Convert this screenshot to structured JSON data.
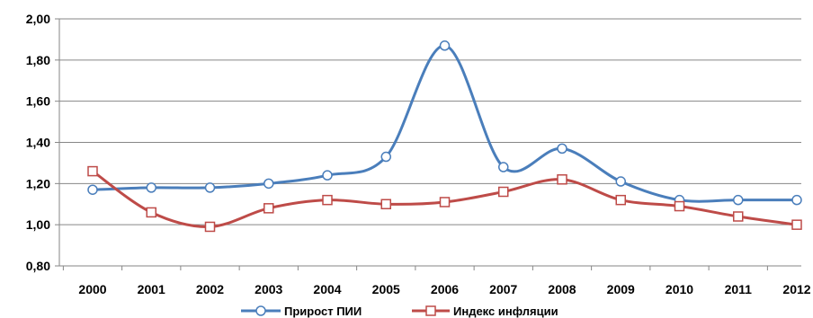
{
  "chart_data": {
    "type": "line",
    "title": "",
    "xlabel": "",
    "ylabel": "",
    "categories": [
      "2000",
      "2001",
      "2002",
      "2003",
      "2004",
      "2005",
      "2006",
      "2007",
      "2008",
      "2009",
      "2010",
      "2011",
      "2012"
    ],
    "ylim": [
      0.8,
      2.0
    ],
    "yticks": [
      "0,80",
      "1,00",
      "1,20",
      "1,40",
      "1,60",
      "1,80",
      "2,00"
    ],
    "ytick_values": [
      0.8,
      1.0,
      1.2,
      1.4,
      1.6,
      1.8,
      2.0
    ],
    "grid": "horizontal",
    "smooth": true,
    "legend_position": "bottom",
    "series": [
      {
        "name": "Прирост ПИИ",
        "color": "#4a7ebb",
        "marker": "circle",
        "values": [
          1.17,
          1.18,
          1.18,
          1.2,
          1.24,
          1.33,
          1.87,
          1.28,
          1.37,
          1.21,
          1.12,
          1.12,
          1.12
        ]
      },
      {
        "name": "Индекс инфляции",
        "color": "#be4b48",
        "marker": "square",
        "values": [
          1.26,
          1.06,
          0.99,
          1.08,
          1.12,
          1.1,
          1.11,
          1.16,
          1.22,
          1.12,
          1.09,
          1.04,
          1.0
        ]
      }
    ]
  }
}
